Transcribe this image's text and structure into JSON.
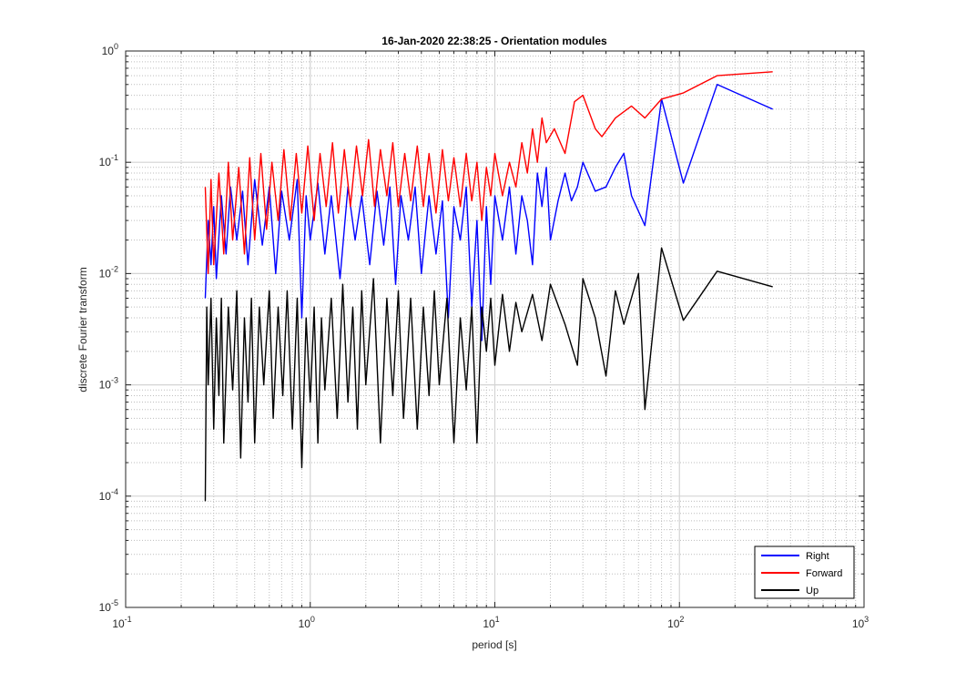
{
  "chart_data": {
    "type": "line",
    "title": "16-Jan-2020 22:38:25 - Orientation modules",
    "xlabel": "period [s]",
    "ylabel": "discrete Fourier transform",
    "xscale": "log",
    "yscale": "log",
    "xlim": [
      0.1,
      1000
    ],
    "ylim": [
      1e-05,
      1
    ],
    "grid": true,
    "minor_grid": true,
    "legend_position": "bottom-right",
    "x_tick_labels": [
      {
        "base": "10",
        "exp": "-1"
      },
      {
        "base": "10",
        "exp": "0"
      },
      {
        "base": "10",
        "exp": "1"
      },
      {
        "base": "10",
        "exp": "2"
      },
      {
        "base": "10",
        "exp": "3"
      }
    ],
    "y_tick_labels": [
      {
        "base": "10",
        "exp": "-5"
      },
      {
        "base": "10",
        "exp": "-4"
      },
      {
        "base": "10",
        "exp": "-3"
      },
      {
        "base": "10",
        "exp": "-2"
      },
      {
        "base": "10",
        "exp": "-1"
      },
      {
        "base": "10",
        "exp": "0"
      }
    ],
    "series": [
      {
        "name": "Right",
        "color": "#0000ff",
        "points": [
          [
            0.27,
            0.006
          ],
          [
            0.28,
            0.03
          ],
          [
            0.29,
            0.012
          ],
          [
            0.3,
            0.04
          ],
          [
            0.31,
            0.009
          ],
          [
            0.33,
            0.05
          ],
          [
            0.35,
            0.015
          ],
          [
            0.37,
            0.06
          ],
          [
            0.4,
            0.02
          ],
          [
            0.43,
            0.055
          ],
          [
            0.46,
            0.012
          ],
          [
            0.5,
            0.07
          ],
          [
            0.55,
            0.018
          ],
          [
            0.6,
            0.06
          ],
          [
            0.65,
            0.01
          ],
          [
            0.7,
            0.055
          ],
          [
            0.77,
            0.02
          ],
          [
            0.85,
            0.07
          ],
          [
            0.9,
            0.004
          ],
          [
            0.95,
            0.05
          ],
          [
            1.0,
            0.02
          ],
          [
            1.1,
            0.065
          ],
          [
            1.2,
            0.015
          ],
          [
            1.3,
            0.05
          ],
          [
            1.45,
            0.009
          ],
          [
            1.6,
            0.06
          ],
          [
            1.75,
            0.02
          ],
          [
            1.9,
            0.05
          ],
          [
            2.1,
            0.012
          ],
          [
            2.3,
            0.055
          ],
          [
            2.5,
            0.018
          ],
          [
            2.7,
            0.06
          ],
          [
            2.9,
            0.008
          ],
          [
            3.1,
            0.05
          ],
          [
            3.4,
            0.02
          ],
          [
            3.7,
            0.06
          ],
          [
            4.0,
            0.01
          ],
          [
            4.4,
            0.05
          ],
          [
            4.8,
            0.015
          ],
          [
            5.2,
            0.045
          ],
          [
            5.6,
            0.004
          ],
          [
            6.0,
            0.04
          ],
          [
            6.5,
            0.02
          ],
          [
            7.0,
            0.06
          ],
          [
            7.5,
            0.005
          ],
          [
            8.0,
            0.03
          ],
          [
            8.5,
            0.0025
          ],
          [
            9.0,
            0.04
          ],
          [
            9.5,
            0.008
          ],
          [
            10.0,
            0.05
          ],
          [
            11.0,
            0.02
          ],
          [
            12.0,
            0.06
          ],
          [
            13.0,
            0.015
          ],
          [
            14.0,
            0.05
          ],
          [
            15.0,
            0.03
          ],
          [
            16.0,
            0.012
          ],
          [
            17.0,
            0.08
          ],
          [
            18.0,
            0.04
          ],
          [
            19.0,
            0.09
          ],
          [
            20.0,
            0.02
          ],
          [
            22.0,
            0.045
          ],
          [
            24.0,
            0.08
          ],
          [
            26.0,
            0.045
          ],
          [
            28.0,
            0.06
          ],
          [
            30.0,
            0.1
          ],
          [
            35.0,
            0.055
          ],
          [
            40.0,
            0.06
          ],
          [
            45.0,
            0.09
          ],
          [
            50.0,
            0.12
          ],
          [
            55.0,
            0.05
          ],
          [
            65.0,
            0.027
          ],
          [
            80.0,
            0.37
          ],
          [
            105.0,
            0.065
          ],
          [
            160.0,
            0.5
          ],
          [
            320.0,
            0.3
          ]
        ]
      },
      {
        "name": "Forward",
        "color": "#ff0000",
        "points": [
          [
            0.27,
            0.06
          ],
          [
            0.28,
            0.01
          ],
          [
            0.29,
            0.07
          ],
          [
            0.3,
            0.012
          ],
          [
            0.32,
            0.08
          ],
          [
            0.34,
            0.015
          ],
          [
            0.36,
            0.1
          ],
          [
            0.38,
            0.02
          ],
          [
            0.41,
            0.09
          ],
          [
            0.44,
            0.015
          ],
          [
            0.47,
            0.11
          ],
          [
            0.5,
            0.02
          ],
          [
            0.54,
            0.12
          ],
          [
            0.58,
            0.025
          ],
          [
            0.62,
            0.1
          ],
          [
            0.67,
            0.03
          ],
          [
            0.72,
            0.13
          ],
          [
            0.78,
            0.03
          ],
          [
            0.84,
            0.12
          ],
          [
            0.9,
            0.035
          ],
          [
            0.97,
            0.14
          ],
          [
            1.05,
            0.03
          ],
          [
            1.13,
            0.12
          ],
          [
            1.22,
            0.04
          ],
          [
            1.32,
            0.15
          ],
          [
            1.42,
            0.035
          ],
          [
            1.53,
            0.13
          ],
          [
            1.65,
            0.04
          ],
          [
            1.78,
            0.14
          ],
          [
            1.92,
            0.05
          ],
          [
            2.07,
            0.16
          ],
          [
            2.23,
            0.04
          ],
          [
            2.4,
            0.13
          ],
          [
            2.6,
            0.05
          ],
          [
            2.8,
            0.15
          ],
          [
            3.0,
            0.04
          ],
          [
            3.25,
            0.12
          ],
          [
            3.5,
            0.045
          ],
          [
            3.8,
            0.14
          ],
          [
            4.1,
            0.04
          ],
          [
            4.4,
            0.12
          ],
          [
            4.8,
            0.035
          ],
          [
            5.2,
            0.13
          ],
          [
            5.6,
            0.045
          ],
          [
            6.0,
            0.11
          ],
          [
            6.5,
            0.04
          ],
          [
            7.0,
            0.12
          ],
          [
            7.5,
            0.045
          ],
          [
            8.0,
            0.1
          ],
          [
            8.5,
            0.03
          ],
          [
            9.0,
            0.09
          ],
          [
            9.5,
            0.05
          ],
          [
            10.0,
            0.12
          ],
          [
            11.0,
            0.05
          ],
          [
            12.0,
            0.1
          ],
          [
            13.0,
            0.06
          ],
          [
            14.0,
            0.15
          ],
          [
            15.0,
            0.08
          ],
          [
            16.0,
            0.2
          ],
          [
            17.0,
            0.1
          ],
          [
            18.0,
            0.25
          ],
          [
            19.0,
            0.15
          ],
          [
            21.0,
            0.2
          ],
          [
            24.0,
            0.12
          ],
          [
            27.0,
            0.35
          ],
          [
            30.0,
            0.4
          ],
          [
            35.0,
            0.2
          ],
          [
            38.0,
            0.17
          ],
          [
            45.0,
            0.25
          ],
          [
            55.0,
            0.32
          ],
          [
            65.0,
            0.25
          ],
          [
            80.0,
            0.37
          ],
          [
            105.0,
            0.42
          ],
          [
            160.0,
            0.6
          ],
          [
            320.0,
            0.65
          ]
        ]
      },
      {
        "name": "Up",
        "color": "#000000",
        "points": [
          [
            0.27,
            9e-05
          ],
          [
            0.275,
            0.005
          ],
          [
            0.28,
            0.001
          ],
          [
            0.29,
            0.006
          ],
          [
            0.3,
            0.0004
          ],
          [
            0.31,
            0.004
          ],
          [
            0.32,
            0.0008
          ],
          [
            0.33,
            0.006
          ],
          [
            0.34,
            0.0003
          ],
          [
            0.36,
            0.005
          ],
          [
            0.38,
            0.0009
          ],
          [
            0.4,
            0.007
          ],
          [
            0.42,
            0.00022
          ],
          [
            0.44,
            0.004
          ],
          [
            0.46,
            0.0007
          ],
          [
            0.48,
            0.006
          ],
          [
            0.5,
            0.0003
          ],
          [
            0.53,
            0.005
          ],
          [
            0.56,
            0.001
          ],
          [
            0.6,
            0.007
          ],
          [
            0.63,
            0.0005
          ],
          [
            0.67,
            0.005
          ],
          [
            0.71,
            0.0008
          ],
          [
            0.75,
            0.007
          ],
          [
            0.8,
            0.0004
          ],
          [
            0.85,
            0.006
          ],
          [
            0.9,
            0.00018
          ],
          [
            0.95,
            0.004
          ],
          [
            1.0,
            0.0007
          ],
          [
            1.05,
            0.005
          ],
          [
            1.1,
            0.0003
          ],
          [
            1.15,
            0.004
          ],
          [
            1.2,
            0.0009
          ],
          [
            1.3,
            0.006
          ],
          [
            1.4,
            0.0005
          ],
          [
            1.5,
            0.008
          ],
          [
            1.6,
            0.0007
          ],
          [
            1.7,
            0.005
          ],
          [
            1.8,
            0.0004
          ],
          [
            1.9,
            0.007
          ],
          [
            2.0,
            0.001
          ],
          [
            2.2,
            0.009
          ],
          [
            2.4,
            0.0003
          ],
          [
            2.6,
            0.006
          ],
          [
            2.8,
            0.0008
          ],
          [
            3.0,
            0.007
          ],
          [
            3.2,
            0.0005
          ],
          [
            3.5,
            0.006
          ],
          [
            3.8,
            0.0004
          ],
          [
            4.1,
            0.005
          ],
          [
            4.4,
            0.0008
          ],
          [
            4.7,
            0.007
          ],
          [
            5.0,
            0.001
          ],
          [
            5.5,
            0.006
          ],
          [
            6.0,
            0.0003
          ],
          [
            6.5,
            0.004
          ],
          [
            7.0,
            0.0009
          ],
          [
            7.5,
            0.005
          ],
          [
            8.0,
            0.0003
          ],
          [
            8.5,
            0.005
          ],
          [
            9.0,
            0.002
          ],
          [
            9.5,
            0.006
          ],
          [
            10.0,
            0.0015
          ],
          [
            11.0,
            0.0065
          ],
          [
            12.0,
            0.002
          ],
          [
            13.0,
            0.0055
          ],
          [
            14.0,
            0.003
          ],
          [
            16.0,
            0.0065
          ],
          [
            18.0,
            0.0025
          ],
          [
            20.0,
            0.008
          ],
          [
            24.0,
            0.0035
          ],
          [
            28.0,
            0.0015
          ],
          [
            30.0,
            0.009
          ],
          [
            35.0,
            0.004
          ],
          [
            40.0,
            0.0012
          ],
          [
            45.0,
            0.007
          ],
          [
            50.0,
            0.0035
          ],
          [
            60.0,
            0.01
          ],
          [
            65.0,
            0.0006
          ],
          [
            80.0,
            0.017
          ],
          [
            105.0,
            0.0038
          ],
          [
            160.0,
            0.0105
          ],
          [
            320.0,
            0.0076
          ]
        ]
      }
    ]
  }
}
